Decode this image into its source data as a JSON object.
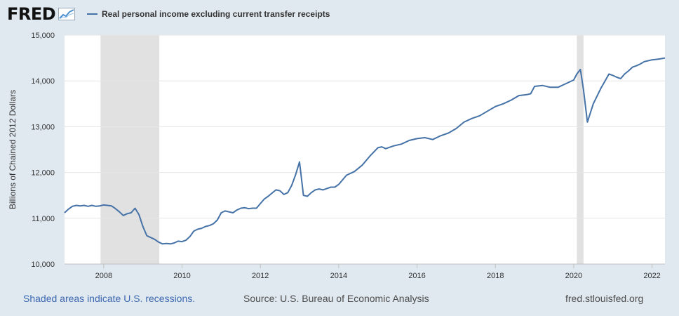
{
  "header": {
    "logo_text": "FRED",
    "legend_label": "Real personal income excluding current transfer receipts"
  },
  "footer": {
    "recession_note": "Shaded areas indicate U.S. recessions.",
    "source": "Source: U.S. Bureau of Economic Analysis",
    "site": "fred.stlouisfed.org"
  },
  "colors": {
    "series": "#4572a7",
    "recession": "#e1e1e1",
    "plot_bg": "#ffffff",
    "page_bg": "#e1e9f0"
  },
  "chart_data": {
    "type": "line",
    "title": "Real personal income excluding current transfer receipts",
    "xlabel": "",
    "ylabel": "Billions of Chained 2012 Dollars",
    "xlim": [
      2007.0,
      2022.33
    ],
    "ylim": [
      10000,
      15000
    ],
    "x_ticks": [
      2008,
      2010,
      2012,
      2014,
      2016,
      2018,
      2020,
      2022
    ],
    "y_ticks": [
      10000,
      11000,
      12000,
      13000,
      14000,
      15000
    ],
    "y_tick_labels": [
      "10,000",
      "11,000",
      "12,000",
      "13,000",
      "14,000",
      "15,000"
    ],
    "grid": "horizontal",
    "legend_position": "top",
    "recessions": [
      {
        "start": 2007.92,
        "end": 2009.42
      },
      {
        "start": 2020.08,
        "end": 2020.25
      }
    ],
    "series": [
      {
        "name": "Real personal income excluding current transfer receipts",
        "x": [
          2007.0,
          2007.1,
          2007.2,
          2007.3,
          2007.4,
          2007.5,
          2007.6,
          2007.7,
          2007.8,
          2007.9,
          2008.0,
          2008.1,
          2008.2,
          2008.3,
          2008.4,
          2008.5,
          2008.6,
          2008.7,
          2008.8,
          2008.9,
          2009.0,
          2009.1,
          2009.2,
          2009.3,
          2009.4,
          2009.5,
          2009.6,
          2009.7,
          2009.8,
          2009.9,
          2010.0,
          2010.1,
          2010.2,
          2010.3,
          2010.4,
          2010.5,
          2010.6,
          2010.7,
          2010.8,
          2010.9,
          2011.0,
          2011.1,
          2011.2,
          2011.3,
          2011.4,
          2011.5,
          2011.6,
          2011.7,
          2011.8,
          2011.9,
          2012.0,
          2012.1,
          2012.2,
          2012.3,
          2012.4,
          2012.5,
          2012.6,
          2012.7,
          2012.8,
          2012.9,
          2013.0,
          2013.1,
          2013.2,
          2013.3,
          2013.4,
          2013.5,
          2013.6,
          2013.7,
          2013.8,
          2013.9,
          2014.0,
          2014.2,
          2014.4,
          2014.6,
          2014.8,
          2015.0,
          2015.1,
          2015.2,
          2015.4,
          2015.6,
          2015.8,
          2016.0,
          2016.2,
          2016.4,
          2016.6,
          2016.8,
          2017.0,
          2017.2,
          2017.4,
          2017.6,
          2017.8,
          2018.0,
          2018.2,
          2018.4,
          2018.6,
          2018.8,
          2018.9,
          2019.0,
          2019.2,
          2019.4,
          2019.6,
          2019.8,
          2020.0,
          2020.08,
          2020.17,
          2020.25,
          2020.35,
          2020.5,
          2020.7,
          2020.8,
          2020.9,
          2021.0,
          2021.1,
          2021.2,
          2021.3,
          2021.4,
          2021.5,
          2021.6,
          2021.7,
          2021.8,
          2021.9,
          2022.0,
          2022.1,
          2022.2,
          2022.33
        ],
        "values": [
          11120,
          11200,
          11260,
          11280,
          11270,
          11280,
          11260,
          11280,
          11260,
          11270,
          11290,
          11280,
          11270,
          11210,
          11140,
          11060,
          11100,
          11120,
          11220,
          11080,
          10820,
          10620,
          10580,
          10540,
          10480,
          10440,
          10450,
          10440,
          10460,
          10500,
          10490,
          10520,
          10600,
          10720,
          10760,
          10780,
          10820,
          10840,
          10880,
          10960,
          11120,
          11160,
          11140,
          11120,
          11180,
          11220,
          11230,
          11210,
          11220,
          11220,
          11320,
          11420,
          11480,
          11550,
          11620,
          11600,
          11520,
          11560,
          11720,
          11950,
          12230,
          11500,
          11480,
          11560,
          11620,
          11640,
          11620,
          11650,
          11680,
          11680,
          11740,
          11940,
          12020,
          12160,
          12360,
          12540,
          12560,
          12520,
          12580,
          12620,
          12700,
          12740,
          12760,
          12720,
          12800,
          12860,
          12960,
          13100,
          13180,
          13240,
          13340,
          13440,
          13500,
          13580,
          13680,
          13700,
          13720,
          13880,
          13900,
          13860,
          13860,
          13940,
          14020,
          14150,
          14250,
          13800,
          13100,
          13500,
          13850,
          14000,
          14150,
          14120,
          14080,
          14050,
          14150,
          14220,
          14300,
          14330,
          14370,
          14420,
          14440,
          14460,
          14470,
          14480,
          14500
        ]
      }
    ]
  }
}
